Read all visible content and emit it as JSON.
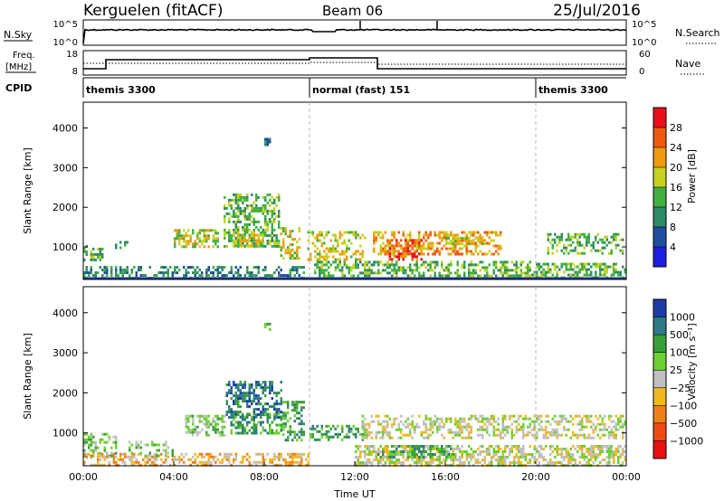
{
  "header": {
    "station": "Kerguelen (fitACF)",
    "beam": "Beam 06",
    "date": "25/Jul/2016"
  },
  "sky_panel": {
    "left_label": "N.Sky",
    "right_label": "N.Search",
    "left_ticks": [
      "10^5",
      "10^0"
    ],
    "right_ticks": [
      "10^5",
      "10^0"
    ]
  },
  "freq_panel": {
    "left_label_1": "Freq.",
    "left_label_2": "[MHz]",
    "right_label": "Nave",
    "left_ticks": [
      "18",
      "8"
    ],
    "right_ticks": [
      "60",
      "0"
    ]
  },
  "cpid": {
    "label": "CPID",
    "segments": [
      {
        "text": "themis 3300",
        "start_h": 0,
        "end_h": 10
      },
      {
        "text": "normal (fast) 151",
        "start_h": 10,
        "end_h": 20
      },
      {
        "text": "themis 3300",
        "start_h": 20,
        "end_h": 24
      }
    ]
  },
  "colors": {
    "frame": "#000000",
    "divider": "#bbbbbb",
    "ground_line": "#1f3d8a"
  },
  "chart_data": [
    {
      "type": "heatmap",
      "name": "power",
      "ylabel": "Slant Range [km]",
      "xlabel": "",
      "x_range_h": [
        0,
        24
      ],
      "ylim_km": [
        180,
        4650
      ],
      "yticks": [
        1000,
        2000,
        3000,
        4000
      ],
      "colorbar": {
        "label": "Power [dB]",
        "ticks": [
          "28",
          "24",
          "20",
          "16",
          "12",
          "8",
          "4"
        ],
        "colors": [
          "#e8101a",
          "#f05a10",
          "#f29a12",
          "#c8d020",
          "#40b040",
          "#2f8a66",
          "#1f4ea0",
          "#1e1ee0"
        ]
      },
      "echo_regions": [
        {
          "t": [
            0.0,
            0.9
          ],
          "r": [
            700,
            1050
          ],
          "level": 3,
          "density": 0.55
        },
        {
          "t": [
            0.0,
            9.8
          ],
          "r": [
            200,
            520
          ],
          "level": 2,
          "density": 0.45
        },
        {
          "t": [
            1.3,
            2.0
          ],
          "r": [
            1000,
            1150
          ],
          "level": 2,
          "density": 0.4
        },
        {
          "t": [
            4.0,
            6.0
          ],
          "r": [
            1000,
            1450
          ],
          "level": 4,
          "density": 0.55
        },
        {
          "t": [
            6.2,
            8.7
          ],
          "r": [
            1050,
            2350
          ],
          "level": 3,
          "density": 0.5
        },
        {
          "t": [
            6.5,
            8.0
          ],
          "r": [
            1050,
            1400
          ],
          "level": 4,
          "density": 0.6
        },
        {
          "t": [
            8.7,
            9.6
          ],
          "r": [
            700,
            1500
          ],
          "level": 4,
          "density": 0.5
        },
        {
          "t": [
            9.9,
            12.5
          ],
          "r": [
            650,
            1400
          ],
          "level": 4,
          "density": 0.45
        },
        {
          "t": [
            10.2,
            19.8
          ],
          "r": [
            200,
            650
          ],
          "level": 3,
          "density": 0.5
        },
        {
          "t": [
            12.8,
            18.5
          ],
          "r": [
            800,
            1400
          ],
          "level": 5,
          "density": 0.5
        },
        {
          "t": [
            13.5,
            15.0
          ],
          "r": [
            700,
            1200
          ],
          "level": 6,
          "density": 0.6
        },
        {
          "t": [
            16.0,
            18.0
          ],
          "r": [
            1100,
            1250
          ],
          "level": 4,
          "density": 0.6
        },
        {
          "t": [
            20.5,
            23.9
          ],
          "r": [
            850,
            1350
          ],
          "level": 3,
          "density": 0.45
        },
        {
          "t": [
            19.8,
            24.0
          ],
          "r": [
            200,
            600
          ],
          "level": 3,
          "density": 0.5
        },
        {
          "t": [
            8.0,
            8.3
          ],
          "r": [
            3550,
            3750
          ],
          "level": 2,
          "density": 0.7
        }
      ]
    },
    {
      "type": "heatmap",
      "name": "velocity",
      "ylabel": "Slant Range [km]",
      "xlabel": "Time UT",
      "x_range_h": [
        0,
        24
      ],
      "xticks": [
        "00:00",
        "04:00",
        "08:00",
        "12:00",
        "16:00",
        "20:00",
        "00:00"
      ],
      "ylim_km": [
        180,
        4650
      ],
      "yticks": [
        1000,
        2000,
        3000,
        4000
      ],
      "colorbar": {
        "label": "Velocity [m s⁻¹]",
        "ticks": [
          "1000",
          "500",
          "100",
          "25",
          "−25",
          "−100",
          "−500",
          "−1000"
        ],
        "colors": [
          "#1e3ca8",
          "#2f7a86",
          "#3aa03a",
          "#6cd030",
          "#c0c0c0",
          "#f2b820",
          "#f0801a",
          "#f04a14",
          "#e81010"
        ]
      },
      "echo_regions": [
        {
          "t": [
            0.0,
            1.5
          ],
          "r": [
            400,
            1000
          ],
          "level": 5,
          "density": 0.45
        },
        {
          "t": [
            0.0,
            10.0
          ],
          "r": [
            200,
            500
          ],
          "level": 3,
          "density": 0.45
        },
        {
          "t": [
            2.0,
            4.0
          ],
          "r": [
            400,
            800
          ],
          "level": 5,
          "density": 0.35
        },
        {
          "t": [
            4.5,
            6.3
          ],
          "r": [
            950,
            1450
          ],
          "level": 5,
          "density": 0.55
        },
        {
          "t": [
            6.3,
            8.8
          ],
          "r": [
            1400,
            2300
          ],
          "level": 7,
          "density": 0.55
        },
        {
          "t": [
            6.5,
            8.8
          ],
          "r": [
            1000,
            1500
          ],
          "level": 6,
          "density": 0.55
        },
        {
          "t": [
            8.8,
            9.8
          ],
          "r": [
            800,
            1800
          ],
          "level": 6,
          "density": 0.5
        },
        {
          "t": [
            10.0,
            12.3
          ],
          "r": [
            800,
            1200
          ],
          "level": 6,
          "density": 0.45
        },
        {
          "t": [
            12.0,
            24.0
          ],
          "r": [
            200,
            700
          ],
          "level": 4,
          "density": 0.6
        },
        {
          "t": [
            13.0,
            16.5
          ],
          "r": [
            400,
            700
          ],
          "level": 6,
          "density": 0.4
        },
        {
          "t": [
            12.3,
            24.0
          ],
          "r": [
            900,
            1450
          ],
          "level": 4,
          "density": 0.45
        },
        {
          "t": [
            8.0,
            8.3
          ],
          "r": [
            3550,
            3750
          ],
          "level": 5,
          "density": 0.6
        }
      ]
    }
  ]
}
